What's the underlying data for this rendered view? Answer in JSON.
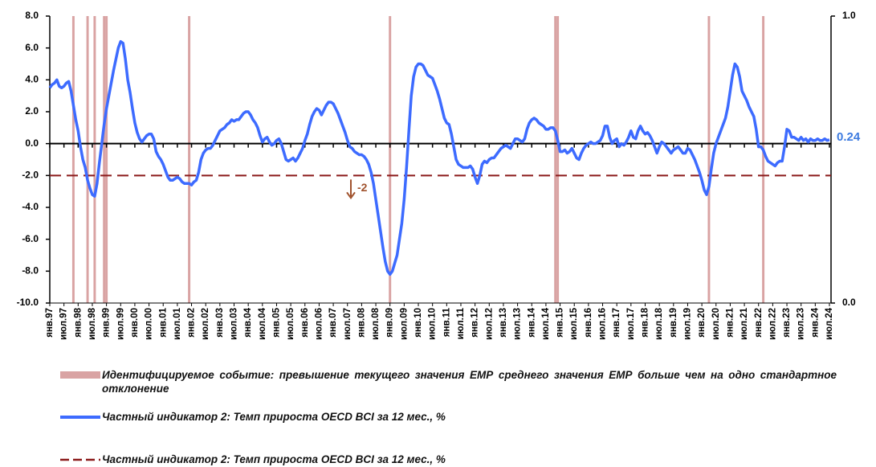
{
  "chart_data": {
    "type": "line",
    "categories": [
      "янв.97",
      null,
      null,
      null,
      null,
      null,
      "июл.97",
      null,
      null,
      null,
      null,
      null,
      "янв.98",
      null,
      null,
      null,
      null,
      null,
      "июл.98",
      null,
      null,
      null,
      null,
      null,
      "янв.99",
      null,
      null,
      null,
      null,
      null,
      "июл.99",
      null,
      null,
      null,
      null,
      null,
      "янв.00",
      null,
      null,
      null,
      null,
      null,
      "июл.00",
      null,
      null,
      null,
      null,
      null,
      "янв.01",
      null,
      null,
      null,
      null,
      null,
      "июл.01",
      null,
      null,
      null,
      null,
      null,
      "янв.02",
      null,
      null,
      null,
      null,
      null,
      "июл.02",
      null,
      null,
      null,
      null,
      null,
      "янв.03",
      null,
      null,
      null,
      null,
      null,
      "июл.03",
      null,
      null,
      null,
      null,
      null,
      "янв.04",
      null,
      null,
      null,
      null,
      null,
      "июл.04",
      null,
      null,
      null,
      null,
      null,
      "янв.05",
      null,
      null,
      null,
      null,
      null,
      "июл.05",
      null,
      null,
      null,
      null,
      null,
      "янв.06",
      null,
      null,
      null,
      null,
      null,
      "июл.06",
      null,
      null,
      null,
      null,
      null,
      "янв.07",
      null,
      null,
      null,
      null,
      null,
      "июл.07",
      null,
      null,
      null,
      null,
      null,
      "янв.08",
      null,
      null,
      null,
      null,
      null,
      "июл.08",
      null,
      null,
      null,
      null,
      null,
      "янв.09",
      null,
      null,
      null,
      null,
      null,
      "июл.09",
      null,
      null,
      null,
      null,
      null,
      "янв.10",
      null,
      null,
      null,
      null,
      null,
      "июл.10",
      null,
      null,
      null,
      null,
      null,
      "янв.11",
      null,
      null,
      null,
      null,
      null,
      "июл.11",
      null,
      null,
      null,
      null,
      null,
      "янв.12",
      null,
      null,
      null,
      null,
      null,
      "июл.12",
      null,
      null,
      null,
      null,
      null,
      "янв.13",
      null,
      null,
      null,
      null,
      null,
      "июл.13",
      null,
      null,
      null,
      null,
      null,
      "янв.14",
      null,
      null,
      null,
      null,
      null,
      "июл.14",
      null,
      null,
      null,
      null,
      null,
      "янв.15",
      null,
      null,
      null,
      null,
      null,
      "июл.15",
      null,
      null,
      null,
      null,
      null,
      "янв.16",
      null,
      null,
      null,
      null,
      null,
      "июл.16",
      null,
      null,
      null,
      null,
      null,
      "янв.17",
      null,
      null,
      null,
      null,
      null,
      "июл.17",
      null,
      null,
      null,
      null,
      null,
      "янв.18",
      null,
      null,
      null,
      null,
      null,
      "июл.18",
      null,
      null,
      null,
      null,
      null,
      "янв.19",
      null,
      null,
      null,
      null,
      null,
      "июл.19",
      null,
      null,
      null,
      null,
      null,
      "янв.20",
      null,
      null,
      null,
      null,
      null,
      "июл.20",
      null,
      null,
      null,
      null,
      null,
      "янв.21",
      null,
      null,
      null,
      null,
      null,
      "июл.21",
      null,
      null,
      null,
      null,
      null,
      "янв.22",
      null,
      null,
      null,
      null,
      null,
      "июл.22",
      null,
      null,
      null,
      null,
      null,
      "янв.23",
      null,
      null,
      null,
      null,
      null,
      "июл.23",
      null,
      null,
      null,
      null,
      null,
      "янв.24",
      null,
      null,
      null,
      null,
      null,
      "июл.24"
    ],
    "series": [
      {
        "name": "Идентифицируемое событие: превышение текущего значения ЕМР среднего значения ЕМР больше чем на одно стандартное отклонение",
        "color": "#d9a3a3",
        "type": "bar",
        "axis": "y2",
        "values": [
          0,
          0,
          0,
          0,
          0,
          0,
          0,
          0,
          0,
          0,
          1,
          0,
          0,
          0,
          0,
          0,
          1,
          0,
          0,
          1,
          0,
          0,
          0,
          1,
          1,
          0,
          0,
          0,
          0,
          0,
          0,
          0,
          0,
          0,
          0,
          0,
          0,
          0,
          0,
          0,
          0,
          0,
          0,
          0,
          0,
          0,
          0,
          0,
          0,
          0,
          0,
          0,
          0,
          0,
          0,
          0,
          0,
          0,
          0,
          1,
          0,
          0,
          0,
          0,
          0,
          0,
          0,
          0,
          0,
          0,
          0,
          0,
          0,
          0,
          0,
          0,
          0,
          0,
          0,
          0,
          0,
          0,
          0,
          0,
          0,
          0,
          0,
          0,
          0,
          0,
          0,
          0,
          0,
          0,
          0,
          0,
          0,
          0,
          0,
          0,
          0,
          0,
          0,
          0,
          0,
          0,
          0,
          0,
          0,
          0,
          0,
          0,
          0,
          0,
          0,
          0,
          0,
          0,
          0,
          0,
          0,
          0,
          0,
          0,
          0,
          0,
          0,
          0,
          0,
          0,
          0,
          0,
          0,
          0,
          0,
          0,
          0,
          0,
          0,
          0,
          0,
          0,
          0,
          0,
          1,
          0,
          0,
          0,
          0,
          0,
          0,
          0,
          0,
          0,
          0,
          0,
          0,
          0,
          0,
          0,
          0,
          0,
          0,
          0,
          0,
          0,
          0,
          0,
          0,
          0,
          0,
          0,
          0,
          0,
          0,
          0,
          0,
          0,
          0,
          0,
          0,
          0,
          0,
          0,
          0,
          0,
          0,
          0,
          0,
          0,
          0,
          0,
          0,
          0,
          0,
          0,
          0,
          0,
          0,
          0,
          0,
          0,
          0,
          0,
          0,
          0,
          0,
          0,
          0,
          0,
          0,
          0,
          0,
          0,
          1,
          1,
          0,
          0,
          0,
          0,
          0,
          0,
          0,
          0,
          0,
          0,
          0,
          0,
          0,
          0,
          0,
          0,
          0,
          0,
          0,
          0,
          0,
          0,
          0,
          0,
          0,
          0,
          0,
          0,
          0,
          0,
          0,
          0,
          0,
          0,
          0,
          0,
          0,
          0,
          0,
          0,
          0,
          0,
          0,
          0,
          0,
          0,
          0,
          0,
          0,
          0,
          0,
          0,
          0,
          0,
          0,
          0,
          0,
          0,
          0,
          0,
          0,
          0,
          0,
          1,
          0,
          0,
          0,
          0,
          0,
          0,
          0,
          0,
          0,
          0,
          0,
          0,
          0,
          0,
          0,
          0,
          0,
          0,
          0,
          0,
          0,
          0,
          1,
          0,
          0,
          0,
          0,
          0,
          0,
          0,
          0,
          0,
          0,
          0,
          0,
          0,
          0,
          0,
          0,
          0,
          0,
          0,
          0,
          0,
          0,
          0,
          0,
          0,
          0,
          0,
          0
        ]
      },
      {
        "name": "Частный индикатор 2: Темп прироста OECD BCI за 12 мес., %",
        "color": "#3d6bff",
        "type": "line",
        "values": [
          3.5,
          3.7,
          3.8,
          4.0,
          3.6,
          3.5,
          3.6,
          3.8,
          3.9,
          3.3,
          2.4,
          1.5,
          0.8,
          -0.2,
          -1.0,
          -1.5,
          -2.3,
          -2.8,
          -3.2,
          -3.3,
          -2.5,
          -1.2,
          0.0,
          1.2,
          2.2,
          3.0,
          3.8,
          4.6,
          5.3,
          6.0,
          6.4,
          6.3,
          5.3,
          4.0,
          3.2,
          2.2,
          1.3,
          0.7,
          0.3,
          0.1,
          0.3,
          0.5,
          0.6,
          0.6,
          0.3,
          -0.5,
          -0.8,
          -1.0,
          -1.3,
          -1.7,
          -2.1,
          -2.3,
          -2.3,
          -2.2,
          -2.1,
          -2.2,
          -2.4,
          -2.5,
          -2.5,
          -2.5,
          -2.6,
          -2.4,
          -2.3,
          -1.8,
          -1.0,
          -0.6,
          -0.4,
          -0.3,
          -0.3,
          -0.1,
          0.2,
          0.5,
          0.8,
          0.9,
          1.0,
          1.2,
          1.3,
          1.5,
          1.4,
          1.5,
          1.5,
          1.7,
          1.9,
          2.0,
          2.0,
          1.8,
          1.5,
          1.3,
          1.0,
          0.5,
          0.1,
          0.3,
          0.4,
          0.1,
          -0.1,
          0.0,
          0.2,
          0.3,
          0.0,
          -0.5,
          -1.0,
          -1.1,
          -1.0,
          -0.9,
          -1.1,
          -0.9,
          -0.6,
          -0.3,
          0.2,
          0.6,
          1.2,
          1.7,
          2.0,
          2.2,
          2.1,
          1.8,
          2.1,
          2.4,
          2.6,
          2.6,
          2.5,
          2.2,
          1.9,
          1.5,
          1.1,
          0.7,
          0.2,
          -0.2,
          -0.3,
          -0.5,
          -0.6,
          -0.7,
          -0.7,
          -0.8,
          -1.0,
          -1.3,
          -1.8,
          -2.5,
          -3.5,
          -4.5,
          -5.5,
          -6.5,
          -7.4,
          -8.0,
          -8.2,
          -8.0,
          -7.5,
          -7.0,
          -6.0,
          -5.0,
          -3.5,
          -1.5,
          0.8,
          3.0,
          4.2,
          4.8,
          5.0,
          5.0,
          4.9,
          4.6,
          4.3,
          4.2,
          4.1,
          3.7,
          3.3,
          2.8,
          2.2,
          1.6,
          1.3,
          1.2,
          0.6,
          -0.2,
          -1.0,
          -1.3,
          -1.4,
          -1.5,
          -1.5,
          -1.5,
          -1.4,
          -1.6,
          -2.1,
          -2.5,
          -2.0,
          -1.3,
          -1.1,
          -1.2,
          -1.0,
          -0.9,
          -0.9,
          -0.7,
          -0.5,
          -0.3,
          -0.2,
          -0.1,
          -0.2,
          -0.3,
          0.0,
          0.3,
          0.3,
          0.2,
          0.1,
          0.3,
          0.9,
          1.3,
          1.5,
          1.6,
          1.5,
          1.3,
          1.2,
          1.1,
          0.9,
          0.9,
          1.0,
          1.0,
          0.8,
          0.2,
          -0.5,
          -0.5,
          -0.4,
          -0.6,
          -0.5,
          -0.3,
          -0.6,
          -0.9,
          -1.0,
          -0.6,
          -0.3,
          -0.1,
          0.0,
          0.1,
          0.0,
          0.0,
          0.1,
          0.2,
          0.5,
          1.1,
          1.1,
          0.4,
          0.0,
          0.2,
          0.3,
          -0.2,
          0.0,
          -0.1,
          0.1,
          0.4,
          0.8,
          0.4,
          0.3,
          0.8,
          1.1,
          0.8,
          0.6,
          0.7,
          0.5,
          0.2,
          -0.2,
          -0.6,
          -0.2,
          0.1,
          0.0,
          -0.2,
          -0.4,
          -0.6,
          -0.4,
          -0.3,
          -0.2,
          -0.4,
          -0.6,
          -0.6,
          -0.3,
          -0.4,
          -0.7,
          -1.0,
          -1.4,
          -1.8,
          -2.3,
          -2.9,
          -3.2,
          -2.7,
          -1.6,
          -0.6,
          0.0,
          0.4,
          0.8,
          1.2,
          1.6,
          2.3,
          3.3,
          4.3,
          5.0,
          4.8,
          4.2,
          3.3,
          3.0,
          2.7,
          2.3,
          2.0,
          1.7,
          0.9,
          -0.2,
          -0.2,
          -0.4,
          -0.8,
          -1.1,
          -1.2,
          -1.3,
          -1.4,
          -1.2,
          -1.1,
          -1.1,
          -0.2,
          0.9,
          0.8,
          0.4,
          0.4,
          0.3,
          0.2,
          0.4,
          0.2,
          0.3,
          0.1,
          0.3,
          0.2,
          0.2,
          0.3,
          0.2,
          0.2,
          0.3,
          0.2,
          0.24
        ]
      }
    ],
    "threshold": {
      "name": "Частный индикатор 2: Темп прироста OECD BCI за 12 мес., %",
      "value": -2,
      "color": "#8b1a1a"
    },
    "ylim": [
      -10,
      8
    ],
    "yticks": [
      {
        "value": -10,
        "label": "-10.0"
      },
      {
        "value": -8,
        "label": "-8.0"
      },
      {
        "value": -6,
        "label": "-6.0"
      },
      {
        "value": -4,
        "label": "-4.0"
      },
      {
        "value": -2,
        "label": "-2.0"
      },
      {
        "value": 0,
        "label": "0.0"
      },
      {
        "value": 2,
        "label": "2.0"
      },
      {
        "value": 4,
        "label": "4.0"
      },
      {
        "value": 6,
        "label": "6.0"
      },
      {
        "value": 8,
        "label": "8.0"
      }
    ],
    "y2lim": [
      0,
      1
    ],
    "y2ticks": [
      {
        "value": 0,
        "label": "0.0"
      },
      {
        "value": 1,
        "label": "1.0"
      }
    ]
  }
}
